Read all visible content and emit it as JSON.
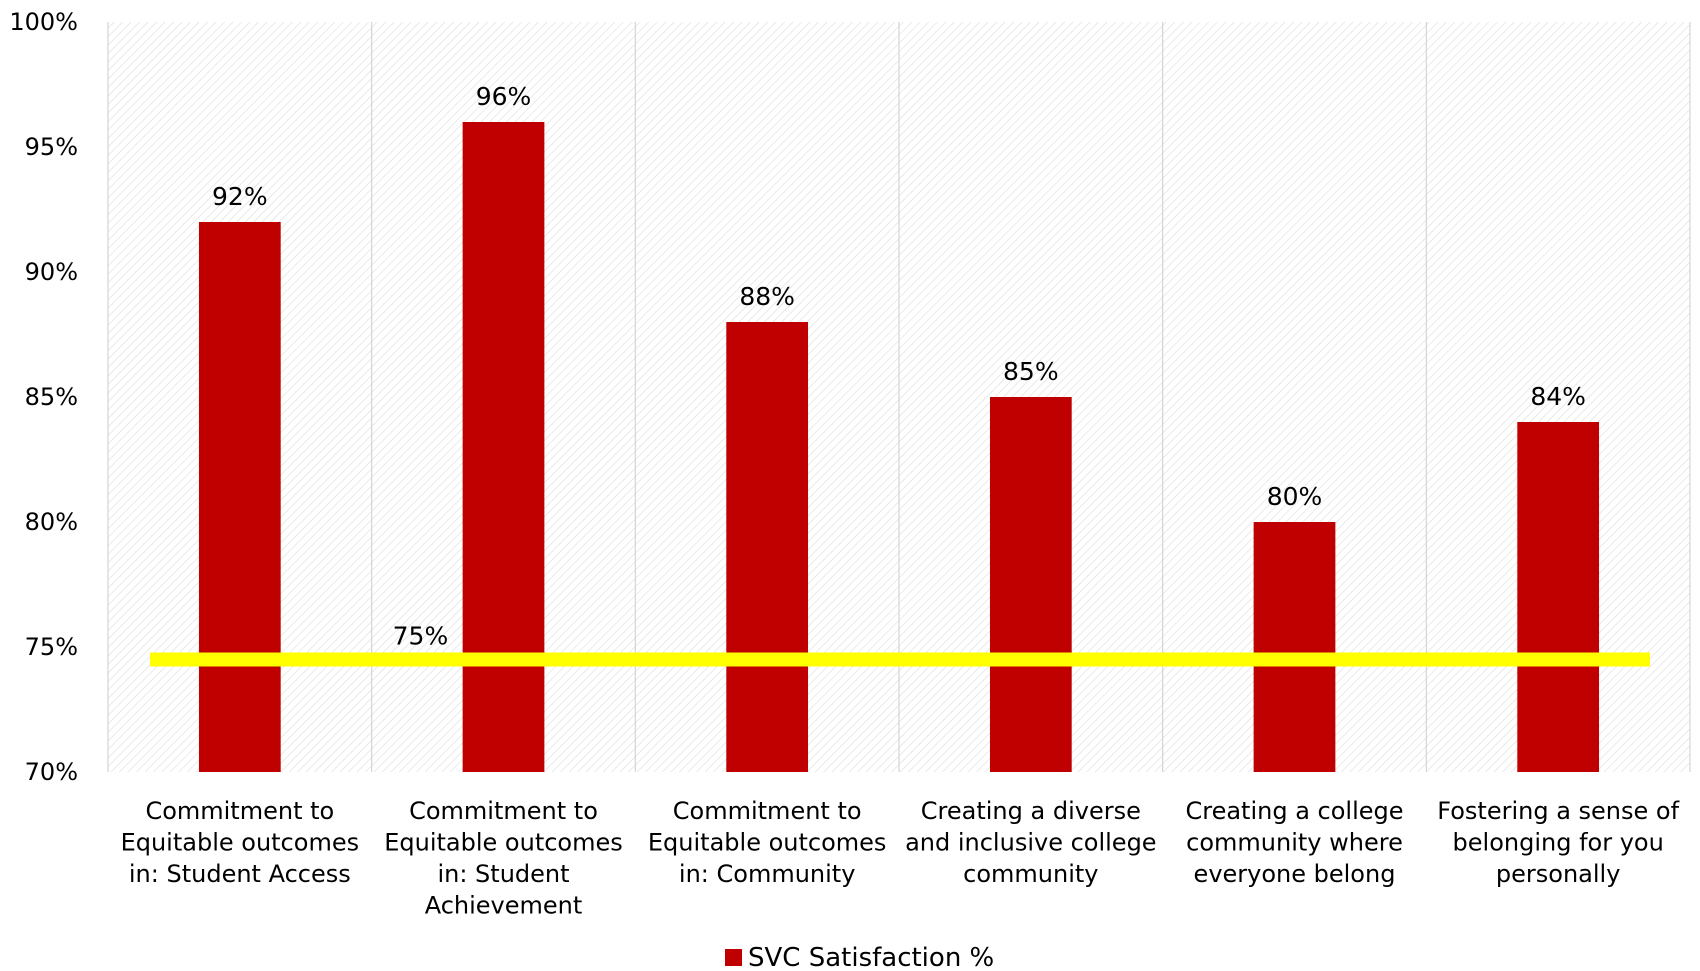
{
  "chart_data": {
    "type": "bar",
    "title": "",
    "xlabel": "",
    "ylabel": "",
    "ylim": [
      70,
      100
    ],
    "yticks": [
      70,
      75,
      80,
      85,
      90,
      95,
      100
    ],
    "ytick_labels": [
      "70%",
      "75%",
      "80%",
      "85%",
      "90%",
      "95%",
      "100%"
    ],
    "categories": [
      [
        "Commitment to",
        "Equitable outcomes",
        "in: Student Access"
      ],
      [
        "Commitment to",
        "Equitable outcomes",
        "in: Student",
        "Achievement"
      ],
      [
        "Commitment to",
        "Equitable outcomes",
        "in: Community"
      ],
      [
        "Creating a diverse",
        "and inclusive college",
        "community"
      ],
      [
        "Creating a college",
        "community where",
        "everyone belong"
      ],
      [
        "Fostering a sense of",
        "belonging for you",
        "personally"
      ]
    ],
    "series": [
      {
        "name": "SVC Satisfaction %",
        "values": [
          92,
          96,
          88,
          85,
          80,
          84
        ],
        "labels": [
          "92%",
          "96%",
          "88%",
          "85%",
          "80%",
          "84%"
        ],
        "color": "#c00000"
      }
    ],
    "reference_line": {
      "value": 74.5,
      "label": "75%",
      "color": "#ffff00"
    },
    "grid": {
      "vertical": true,
      "horizontal": false,
      "background_pattern": "diagonal-hatch"
    },
    "legend_position": "bottom-center"
  }
}
